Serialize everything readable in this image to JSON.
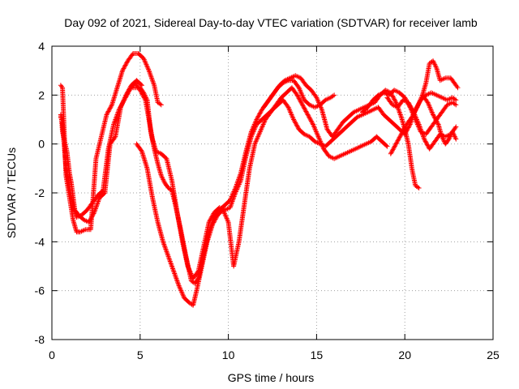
{
  "chart_data": {
    "type": "scatter",
    "title": "Day 092 of 2021, Sidereal Day-to-day VTEC variation (SDTVAR) for receiver lamb",
    "xlabel": "GPS time / hours",
    "ylabel": "SDTVAR / TECUs",
    "xlim": [
      0,
      25
    ],
    "ylim": [
      -8,
      4
    ],
    "xticks": [
      "0",
      "5",
      "10",
      "15",
      "20",
      "25"
    ],
    "yticks": [
      "-8",
      "-6",
      "-4",
      "-2",
      "0",
      "2",
      "4"
    ],
    "grid": true,
    "marker": "+",
    "color": "#ff0000",
    "series": [
      {
        "points": [
          [
            0.5,
            1.2
          ],
          [
            0.6,
            0.8
          ],
          [
            0.8,
            -1.0
          ],
          [
            1.0,
            -1.8
          ],
          [
            1.2,
            -2.5
          ],
          [
            1.4,
            -3.0
          ],
          [
            1.7,
            -2.9
          ],
          [
            2.0,
            -2.7
          ],
          [
            2.3,
            -2.4
          ],
          [
            2.6,
            -2.1
          ],
          [
            2.9,
            -1.9
          ],
          [
            3.2,
            -0.2
          ],
          [
            3.5,
            0.8
          ],
          [
            3.8,
            1.4
          ],
          [
            4.1,
            1.8
          ],
          [
            4.4,
            2.2
          ],
          [
            4.7,
            2.5
          ],
          [
            5.0,
            2.2
          ],
          [
            5.3,
            1.8
          ],
          [
            5.5,
            1.0
          ],
          [
            5.7,
            0.2
          ],
          [
            5.9,
            -0.3
          ],
          [
            6.2,
            -0.4
          ],
          [
            6.5,
            -0.6
          ],
          [
            6.8,
            -1.5
          ],
          [
            7.1,
            -2.8
          ],
          [
            7.4,
            -4.0
          ],
          [
            7.7,
            -5.0
          ],
          [
            8.0,
            -5.5
          ],
          [
            8.3,
            -5.2
          ],
          [
            8.6,
            -4.2
          ],
          [
            8.9,
            -3.2
          ],
          [
            9.2,
            -2.8
          ],
          [
            9.5,
            -2.6
          ],
          [
            9.8,
            -2.7
          ],
          [
            10.1,
            -2.6
          ],
          [
            10.4,
            -2.0
          ],
          [
            10.7,
            -1.5
          ],
          [
            11.0,
            -0.5
          ],
          [
            11.3,
            0.3
          ],
          [
            11.6,
            0.8
          ],
          [
            11.9,
            1.0
          ],
          [
            12.2,
            1.2
          ],
          [
            12.5,
            1.4
          ],
          [
            12.8,
            1.6
          ],
          [
            13.1,
            1.8
          ],
          [
            13.4,
            1.5
          ],
          [
            13.7,
            1.0
          ],
          [
            14.0,
            0.6
          ],
          [
            14.3,
            0.4
          ],
          [
            14.6,
            0.3
          ],
          [
            14.9,
            0.1
          ],
          [
            15.2,
            0.0
          ],
          [
            15.5,
            -0.1
          ],
          [
            15.8,
            0.1
          ],
          [
            16.1,
            0.3
          ],
          [
            16.4,
            0.5
          ],
          [
            16.7,
            0.7
          ],
          [
            17.0,
            0.9
          ],
          [
            17.3,
            1.1
          ],
          [
            17.6,
            1.2
          ],
          [
            17.9,
            1.3
          ],
          [
            18.2,
            1.4
          ],
          [
            18.5,
            1.5
          ],
          [
            18.8,
            1.2
          ],
          [
            19.1,
            1.0
          ],
          [
            19.4,
            0.8
          ],
          [
            19.7,
            0.6
          ],
          [
            20.0,
            0.4
          ],
          [
            20.3,
            0.8
          ],
          [
            20.6,
            1.4
          ],
          [
            20.9,
            1.8
          ],
          [
            21.2,
            2.0
          ],
          [
            21.5,
            2.1
          ],
          [
            21.8,
            2.0
          ],
          [
            22.1,
            1.9
          ],
          [
            22.4,
            1.8
          ],
          [
            22.7,
            1.9
          ],
          [
            22.9,
            1.8
          ]
        ]
      },
      {
        "points": [
          [
            0.5,
            2.4
          ],
          [
            0.6,
            2.3
          ],
          [
            0.8,
            -1.3
          ],
          [
            1.0,
            -2.2
          ],
          [
            1.2,
            -3.1
          ],
          [
            1.4,
            -3.6
          ],
          [
            1.6,
            -3.6
          ],
          [
            1.9,
            -3.5
          ],
          [
            2.2,
            -3.5
          ],
          [
            2.5,
            -0.6
          ],
          [
            2.8,
            0.3
          ],
          [
            3.1,
            1.2
          ],
          [
            3.4,
            1.6
          ],
          [
            3.7,
            2.3
          ],
          [
            4.0,
            3.0
          ],
          [
            4.3,
            3.4
          ],
          [
            4.6,
            3.7
          ],
          [
            4.9,
            3.7
          ],
          [
            5.2,
            3.5
          ],
          [
            5.5,
            3.0
          ],
          [
            5.8,
            2.4
          ],
          [
            6.0,
            1.7
          ],
          [
            6.2,
            1.6
          ]
        ]
      },
      {
        "points": [
          [
            4.6,
            2.3
          ],
          [
            5.0,
            2.3
          ],
          [
            5.2,
            2.1
          ],
          [
            5.4,
            1.8
          ],
          [
            5.6,
            0.5
          ],
          [
            5.8,
            -0.2
          ],
          [
            6.0,
            -0.8
          ],
          [
            6.2,
            -1.3
          ],
          [
            6.4,
            -1.6
          ],
          [
            6.6,
            -1.8
          ],
          [
            6.8,
            -1.9
          ],
          [
            7.0,
            -2.5
          ],
          [
            7.3,
            -3.5
          ],
          [
            7.6,
            -4.6
          ],
          [
            7.9,
            -5.6
          ],
          [
            8.1,
            -5.7
          ],
          [
            8.3,
            -5.5
          ],
          [
            8.6,
            -4.5
          ],
          [
            8.9,
            -3.6
          ],
          [
            9.2,
            -3.0
          ],
          [
            9.5,
            -2.7
          ],
          [
            9.8,
            -2.5
          ],
          [
            10.1,
            -2.3
          ],
          [
            10.4,
            -1.8
          ],
          [
            10.7,
            -1.2
          ],
          [
            11.0,
            -0.3
          ],
          [
            11.3,
            0.5
          ],
          [
            11.6,
            1.0
          ],
          [
            11.9,
            1.4
          ],
          [
            12.2,
            1.7
          ],
          [
            12.5,
            2.0
          ],
          [
            12.8,
            2.3
          ],
          [
            13.1,
            2.5
          ],
          [
            13.4,
            2.6
          ],
          [
            13.7,
            2.6
          ],
          [
            14.0,
            2.3
          ],
          [
            14.3,
            1.8
          ],
          [
            14.6,
            1.6
          ],
          [
            14.9,
            1.5
          ],
          [
            15.2,
            1.6
          ],
          [
            15.5,
            1.8
          ],
          [
            15.8,
            1.9
          ],
          [
            16.0,
            2.0
          ]
        ]
      },
      {
        "points": [
          [
            4.8,
            0.0
          ],
          [
            5.1,
            -0.3
          ],
          [
            5.4,
            -1.0
          ],
          [
            5.7,
            -2.2
          ],
          [
            6.0,
            -3.2
          ],
          [
            6.3,
            -4.0
          ],
          [
            6.6,
            -4.6
          ],
          [
            6.9,
            -5.2
          ],
          [
            7.2,
            -5.8
          ],
          [
            7.5,
            -6.3
          ],
          [
            7.8,
            -6.5
          ],
          [
            8.0,
            -6.6
          ],
          [
            8.2,
            -6.0
          ],
          [
            8.5,
            -5.0
          ],
          [
            8.8,
            -4.0
          ],
          [
            9.1,
            -3.3
          ],
          [
            9.4,
            -2.9
          ],
          [
            9.7,
            -2.7
          ],
          [
            10.0,
            -3.2
          ],
          [
            10.3,
            -5.0
          ],
          [
            10.6,
            -4.0
          ],
          [
            10.9,
            -2.5
          ],
          [
            11.2,
            -1.0
          ],
          [
            11.5,
            0.0
          ],
          [
            11.8,
            0.5
          ],
          [
            12.1,
            1.0
          ],
          [
            12.4,
            1.3
          ],
          [
            12.7,
            1.6
          ],
          [
            13.0,
            1.9
          ],
          [
            13.3,
            2.1
          ],
          [
            13.6,
            2.3
          ],
          [
            13.9,
            2.0
          ],
          [
            14.2,
            1.6
          ],
          [
            14.5,
            1.2
          ],
          [
            14.8,
            0.8
          ],
          [
            15.1,
            0.3
          ],
          [
            15.4,
            -0.2
          ],
          [
            15.7,
            -0.5
          ],
          [
            16.0,
            -0.6
          ],
          [
            16.3,
            -0.5
          ],
          [
            16.6,
            -0.4
          ],
          [
            16.9,
            -0.3
          ],
          [
            17.2,
            -0.2
          ],
          [
            17.5,
            -0.1
          ],
          [
            17.8,
            0.0
          ],
          [
            18.1,
            0.1
          ],
          [
            18.4,
            0.3
          ],
          [
            18.7,
            0.1
          ],
          [
            19.0,
            -0.1
          ]
        ]
      },
      {
        "points": [
          [
            12.0,
            1.5
          ],
          [
            12.3,
            1.8
          ],
          [
            12.6,
            2.1
          ],
          [
            12.9,
            2.4
          ],
          [
            13.2,
            2.6
          ],
          [
            13.5,
            2.7
          ],
          [
            13.8,
            2.8
          ],
          [
            14.1,
            2.7
          ],
          [
            14.4,
            2.4
          ],
          [
            14.7,
            2.2
          ],
          [
            15.0,
            1.9
          ],
          [
            15.3,
            1.4
          ],
          [
            15.6,
            0.6
          ],
          [
            15.9,
            0.3
          ],
          [
            16.2,
            0.6
          ],
          [
            16.5,
            0.9
          ],
          [
            16.8,
            1.1
          ],
          [
            17.1,
            1.3
          ],
          [
            17.4,
            1.4
          ],
          [
            17.7,
            1.5
          ],
          [
            18.0,
            1.6
          ],
          [
            18.3,
            1.7
          ],
          [
            18.6,
            2.0
          ],
          [
            18.9,
            2.2
          ],
          [
            19.2,
            2.1
          ],
          [
            19.5,
            1.7
          ],
          [
            19.8,
            1.1
          ],
          [
            20.0,
            0.6
          ],
          [
            20.2,
            0.0
          ],
          [
            20.4,
            -1.0
          ],
          [
            20.6,
            -1.7
          ],
          [
            20.8,
            -1.8
          ]
        ]
      },
      {
        "points": [
          [
            17.6,
            1.3
          ],
          [
            17.9,
            1.5
          ],
          [
            18.2,
            1.8
          ],
          [
            18.5,
            2.0
          ],
          [
            18.8,
            2.1
          ],
          [
            19.1,
            2.0
          ],
          [
            19.4,
            2.2
          ],
          [
            19.7,
            2.1
          ],
          [
            20.0,
            1.9
          ],
          [
            20.3,
            1.5
          ],
          [
            20.6,
            1.0
          ],
          [
            20.9,
            0.5
          ],
          [
            21.2,
            0.4
          ],
          [
            21.5,
            0.7
          ],
          [
            21.8,
            1.0
          ],
          [
            22.1,
            1.3
          ],
          [
            22.4,
            1.6
          ],
          [
            22.7,
            1.7
          ],
          [
            22.9,
            1.6
          ]
        ]
      },
      {
        "points": [
          [
            19.2,
            -0.4
          ],
          [
            19.5,
            0.0
          ],
          [
            19.8,
            0.4
          ],
          [
            20.1,
            0.8
          ],
          [
            20.4,
            1.1
          ],
          [
            20.7,
            1.5
          ],
          [
            21.0,
            2.0
          ],
          [
            21.2,
            2.5
          ],
          [
            21.4,
            3.3
          ],
          [
            21.6,
            3.4
          ],
          [
            21.8,
            3.1
          ],
          [
            22.0,
            2.6
          ],
          [
            22.3,
            2.7
          ],
          [
            22.6,
            2.7
          ],
          [
            22.9,
            2.4
          ],
          [
            23.0,
            2.3
          ]
        ]
      },
      {
        "points": [
          [
            19.0,
            1.9
          ],
          [
            19.3,
            1.6
          ],
          [
            19.6,
            1.5
          ],
          [
            19.9,
            1.8
          ],
          [
            20.2,
            1.7
          ],
          [
            20.5,
            1.3
          ],
          [
            20.8,
            0.8
          ],
          [
            21.1,
            0.2
          ],
          [
            21.4,
            -0.2
          ],
          [
            21.7,
            0.1
          ],
          [
            22.0,
            0.4
          ],
          [
            22.3,
            0.3
          ],
          [
            22.6,
            0.4
          ],
          [
            22.9,
            0.7
          ]
        ]
      },
      {
        "points": [
          [
            21.0,
            2.0
          ],
          [
            21.3,
            1.7
          ],
          [
            21.6,
            1.2
          ],
          [
            21.9,
            0.8
          ],
          [
            22.1,
            0.3
          ],
          [
            22.3,
            0.0
          ],
          [
            22.5,
            0.2
          ],
          [
            22.7,
            0.5
          ],
          [
            22.9,
            0.2
          ]
        ]
      },
      {
        "points": [
          [
            0.5,
            1.1
          ],
          [
            0.55,
            1.0
          ],
          [
            0.6,
            0.5
          ],
          [
            0.85,
            -0.3
          ],
          [
            1.0,
            -1.2
          ],
          [
            1.1,
            -1.6
          ],
          [
            1.3,
            -2.7
          ],
          [
            1.5,
            -2.9
          ],
          [
            1.8,
            -3.1
          ],
          [
            2.1,
            -3.2
          ],
          [
            2.4,
            -2.8
          ],
          [
            2.7,
            -2.2
          ],
          [
            3.0,
            -2.0
          ],
          [
            3.3,
            0.0
          ],
          [
            3.6,
            0.3
          ],
          [
            3.9,
            1.5
          ],
          [
            4.2,
            2.0
          ],
          [
            4.5,
            2.4
          ],
          [
            4.8,
            2.6
          ],
          [
            5.1,
            2.4
          ]
        ]
      }
    ]
  }
}
